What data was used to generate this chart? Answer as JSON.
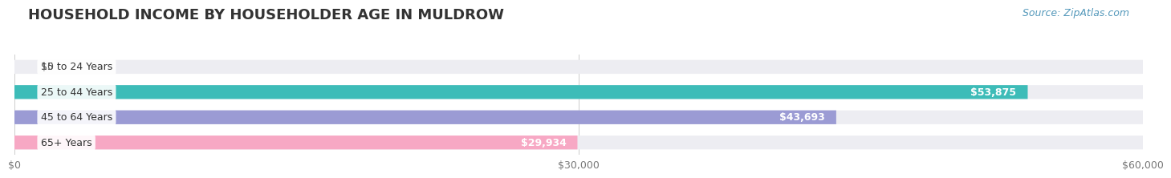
{
  "title": "HOUSEHOLD INCOME BY HOUSEHOLDER AGE IN MULDROW",
  "source": "Source: ZipAtlas.com",
  "categories": [
    "15 to 24 Years",
    "25 to 44 Years",
    "45 to 64 Years",
    "65+ Years"
  ],
  "values": [
    0,
    53875,
    43693,
    29934
  ],
  "bar_colors": [
    "#d4a8d4",
    "#3dbcb8",
    "#9b9bd4",
    "#f7a8c4"
  ],
  "bar_bg_color": "#ededf2",
  "xlim": [
    0,
    60000
  ],
  "xtick_labels": [
    "$0",
    "$30,000",
    "$60,000"
  ],
  "xtick_values": [
    0,
    30000,
    60000
  ],
  "title_fontsize": 13,
  "source_fontsize": 9,
  "label_fontsize": 9,
  "value_fontsize": 9,
  "background_color": "#ffffff",
  "bar_height": 0.55
}
